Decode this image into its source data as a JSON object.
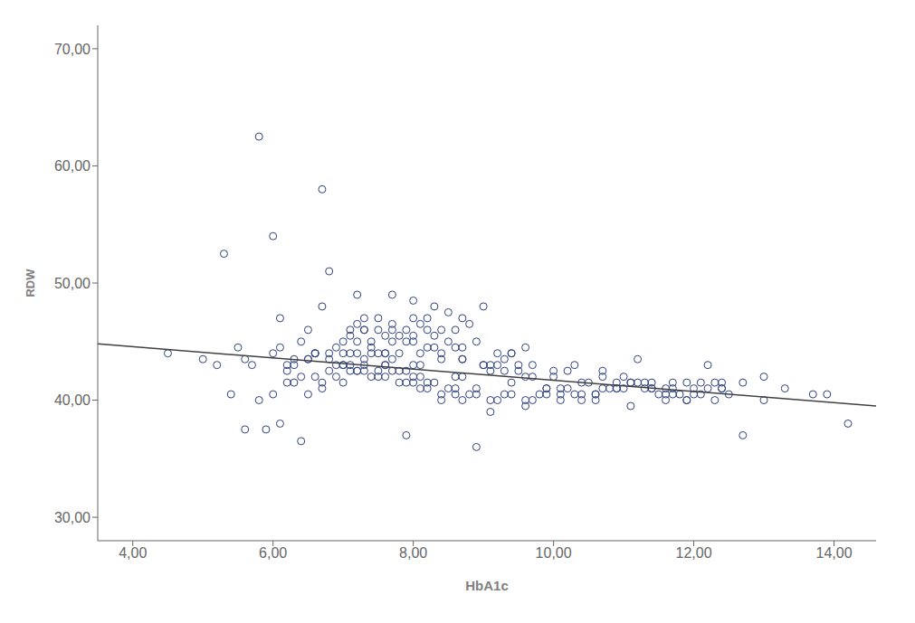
{
  "chart_data": {
    "type": "scatter",
    "xlabel": "HbA1c",
    "ylabel": "RDW",
    "xlim": [
      3.5,
      14.6
    ],
    "ylim": [
      28.0,
      72.0
    ],
    "xticks": [
      {
        "value": 4.0,
        "label": "4,00"
      },
      {
        "value": 6.0,
        "label": "6,00"
      },
      {
        "value": 8.0,
        "label": "8,00"
      },
      {
        "value": 10.0,
        "label": "10,00"
      },
      {
        "value": 12.0,
        "label": "12,00"
      },
      {
        "value": 14.0,
        "label": "14,00"
      }
    ],
    "yticks": [
      {
        "value": 30.0,
        "label": "30,00"
      },
      {
        "value": 40.0,
        "label": "40,00"
      },
      {
        "value": 50.0,
        "label": "50,00"
      },
      {
        "value": 60.0,
        "label": "60,00"
      },
      {
        "value": 70.0,
        "label": "70,00"
      }
    ],
    "grid": false,
    "series": [
      {
        "type": "scatter",
        "color": "#2e4080",
        "marker": "circle",
        "x": [
          5.8,
          5.3,
          6.0,
          6.1,
          6.2,
          6.3,
          6.4,
          6.5,
          6.5,
          6.6,
          6.7,
          6.7,
          6.8,
          6.8,
          6.9,
          7.0,
          7.0,
          7.0,
          7.1,
          7.1,
          7.2,
          7.2,
          7.2,
          7.3,
          7.3,
          7.3,
          7.4,
          7.4,
          7.5,
          7.5,
          7.5,
          7.5,
          7.6,
          7.6,
          7.6,
          7.7,
          7.7,
          7.7,
          7.8,
          7.8,
          7.8,
          7.9,
          7.9,
          8.0,
          8.0,
          8.0,
          8.0,
          8.1,
          8.1,
          8.2,
          8.2,
          8.3,
          8.3,
          8.4,
          8.4,
          8.5,
          8.5,
          8.6,
          8.6,
          8.7,
          8.7,
          8.8,
          8.9,
          9.0,
          9.1,
          9.2,
          9.3,
          9.4,
          9.5,
          9.6,
          6.0,
          6.5,
          7.0,
          7.2,
          7.5,
          7.8,
          8.0,
          8.2,
          8.5,
          8.7,
          9.0,
          9.5,
          10.0,
          10.5,
          11.0,
          11.5,
          12.0,
          12.5,
          13.0,
          14.2,
          5.5,
          5.7,
          6.1,
          6.3,
          6.6,
          6.8,
          7.1,
          7.3,
          7.6,
          7.9,
          8.1,
          8.3,
          8.6,
          8.8,
          9.1,
          9.3,
          9.6,
          9.8,
          10.1,
          10.3,
          10.6,
          10.8,
          11.1,
          11.3,
          11.6,
          11.8,
          12.1,
          12.3,
          4.5,
          5.0,
          5.2,
          5.6,
          6.2,
          6.4,
          6.7,
          6.9,
          7.2,
          7.4,
          7.7,
          8.0,
          8.2,
          8.4,
          8.7,
          8.9,
          9.2,
          9.4,
          9.7,
          9.9,
          10.2,
          10.4,
          10.7,
          10.9,
          11.2,
          11.4,
          11.7,
          11.9,
          12.2,
          12.4,
          5.4,
          5.8,
          6.0,
          6.3,
          6.6,
          6.8,
          7.1,
          7.3,
          7.6,
          7.9,
          8.1,
          8.4,
          8.6,
          8.9,
          9.1,
          9.4,
          9.6,
          9.9,
          10.1,
          10.4,
          10.6,
          10.9,
          11.1,
          11.4,
          11.6,
          11.9,
          12.1,
          12.4,
          6.5,
          7.0,
          7.3,
          7.7,
          8.0,
          8.3,
          8.7,
          9.0,
          9.3,
          9.7,
          10.0,
          10.3,
          10.7,
          11.0,
          11.3,
          11.7,
          12.0,
          12.3,
          12.7,
          13.0,
          13.3,
          13.7,
          6.2,
          6.7,
          7.2,
          7.7,
          8.2,
          8.7,
          9.2,
          9.7,
          10.2,
          10.7,
          11.2,
          11.7,
          12.2,
          12.7,
          5.9,
          6.4,
          6.9,
          7.4,
          7.9,
          8.4,
          8.9,
          9.4,
          9.9,
          10.4,
          10.9,
          11.4,
          11.9,
          12.4,
          13.9,
          5.6,
          6.1,
          6.6,
          7.1,
          7.6,
          8.1,
          8.6,
          9.1,
          9.6,
          10.1,
          10.6,
          11.1,
          11.6
        ],
        "values": [
          62.5,
          52.5,
          54.0,
          47.0,
          43.0,
          43.0,
          45.0,
          46.0,
          43.5,
          44.0,
          58.0,
          48.0,
          51.0,
          44.0,
          43.0,
          45.0,
          44.0,
          43.0,
          46.0,
          45.5,
          46.5,
          45.0,
          44.0,
          47.0,
          46.0,
          43.0,
          45.0,
          44.5,
          47.0,
          46.0,
          44.0,
          42.5,
          45.5,
          44.0,
          43.0,
          46.0,
          45.0,
          43.5,
          45.5,
          44.0,
          42.5,
          46.0,
          45.0,
          48.5,
          47.0,
          45.5,
          43.0,
          46.5,
          44.0,
          46.0,
          44.5,
          48.0,
          45.5,
          46.0,
          44.0,
          47.5,
          45.0,
          46.0,
          44.5,
          47.0,
          44.5,
          46.5,
          45.0,
          48.0,
          43.0,
          44.0,
          43.5,
          44.0,
          43.0,
          44.5,
          44.0,
          43.5,
          43.0,
          42.5,
          42.0,
          41.5,
          42.0,
          41.5,
          41.0,
          42.0,
          43.0,
          42.5,
          42.0,
          41.5,
          41.0,
          40.5,
          41.0,
          40.5,
          40.0,
          38.0,
          44.5,
          43.0,
          44.5,
          43.5,
          44.0,
          43.5,
          44.0,
          43.5,
          43.0,
          42.5,
          42.0,
          41.5,
          41.0,
          40.5,
          40.0,
          40.5,
          40.0,
          40.5,
          41.0,
          40.5,
          40.0,
          41.0,
          41.5,
          41.0,
          41.0,
          40.5,
          40.5,
          41.5,
          44.0,
          43.5,
          43.0,
          43.5,
          42.5,
          42.0,
          41.5,
          42.0,
          42.5,
          42.0,
          42.5,
          41.5,
          41.0,
          40.5,
          40.0,
          40.5,
          40.0,
          40.5,
          40.0,
          40.5,
          41.0,
          41.5,
          41.0,
          41.5,
          41.5,
          41.0,
          40.5,
          40.0,
          41.0,
          41.5,
          40.5,
          40.0,
          40.5,
          41.5,
          42.0,
          42.5,
          43.0,
          42.5,
          42.0,
          41.5,
          41.0,
          40.0,
          40.5,
          41.0,
          42.5,
          41.5,
          42.0,
          41.0,
          40.5,
          40.0,
          40.5,
          41.0,
          41.5,
          41.0,
          40.5,
          40.0,
          41.5,
          41.0,
          40.5,
          41.5,
          46.0,
          46.5,
          45.0,
          44.5,
          43.5,
          43.0,
          42.5,
          42.0,
          42.5,
          43.0,
          42.5,
          42.0,
          41.5,
          41.0,
          40.5,
          40.0,
          41.5,
          42.0,
          41.0,
          40.5,
          41.5,
          41.0,
          49.0,
          49.0,
          47.0,
          43.5,
          43.0,
          43.0,
          42.5,
          42.0,
          43.5,
          41.5,
          43.0,
          37.0,
          37.5,
          36.5,
          44.5,
          44.0,
          37.0,
          43.5,
          36.0,
          44.0,
          41.0,
          40.5,
          41.0,
          41.5,
          41.5,
          41.0,
          40.5,
          37.5,
          38.0,
          44.0,
          42.5,
          44.0,
          43.0,
          42.0,
          39.0,
          39.5,
          40.0,
          40.5,
          39.5,
          40.0
        ]
      },
      {
        "type": "line",
        "color": "#404040",
        "x": [
          3.5,
          14.6
        ],
        "values": [
          44.8,
          39.5
        ]
      }
    ]
  }
}
